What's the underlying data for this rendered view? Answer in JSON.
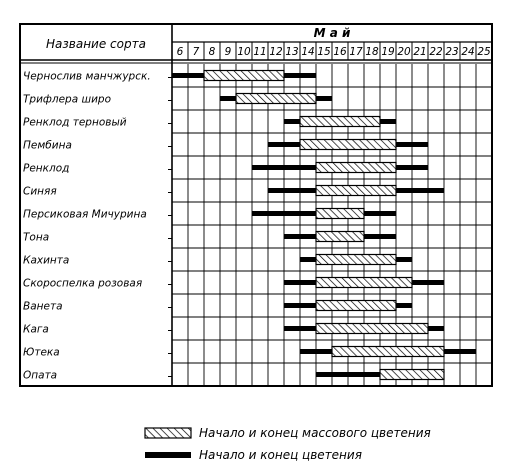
{
  "chart_data": {
    "type": "gantt",
    "corner_header": "Название сорта",
    "month": "М а й",
    "days": [
      "6",
      "7",
      "8",
      "9",
      "10",
      "11",
      "12",
      "13",
      "14",
      "15",
      "16",
      "17",
      "18",
      "19",
      "20",
      "21",
      "22",
      "23",
      "24",
      "25"
    ],
    "varieties": [
      {
        "name": "Чернослив манчжурск.",
        "bloom": [
          6,
          15
        ],
        "mass": [
          8,
          13
        ]
      },
      {
        "name": "Трифлера широ",
        "bloom": [
          9,
          16
        ],
        "mass": [
          10,
          15
        ]
      },
      {
        "name": "Ренклод терновый",
        "bloom": [
          13,
          20
        ],
        "mass": [
          14,
          19
        ]
      },
      {
        "name": "Пембина",
        "bloom": [
          12,
          22
        ],
        "mass": [
          14,
          20
        ]
      },
      {
        "name": "Ренклод",
        "bloom": [
          11,
          22
        ],
        "mass": [
          15,
          20
        ]
      },
      {
        "name": "Синяя",
        "bloom": [
          12,
          23
        ],
        "mass": [
          15,
          20
        ]
      },
      {
        "name": "Персиковая Мичурина",
        "bloom": [
          11,
          20
        ],
        "mass": [
          15,
          18
        ]
      },
      {
        "name": "Тона",
        "bloom": [
          13,
          20
        ],
        "mass": [
          15,
          18
        ]
      },
      {
        "name": "Кахинта",
        "bloom": [
          14,
          21
        ],
        "mass": [
          15,
          20
        ]
      },
      {
        "name": "Скороспелка розовая",
        "bloom": [
          13,
          23
        ],
        "mass": [
          15,
          21
        ]
      },
      {
        "name": "Ванета",
        "bloom": [
          13,
          21
        ],
        "mass": [
          15,
          20
        ]
      },
      {
        "name": "Кага",
        "bloom": [
          13,
          23
        ],
        "mass": [
          15,
          22
        ]
      },
      {
        "name": "Ютека",
        "bloom": [
          14,
          25
        ],
        "mass": [
          16,
          23
        ]
      },
      {
        "name": "Опата",
        "bloom": [
          15,
          23
        ],
        "mass": [
          19,
          23
        ]
      }
    ],
    "legend": [
      {
        "key": "mass",
        "label": "Начало и конец массового цветения"
      },
      {
        "key": "bloom",
        "label": "Начало и конец цветения"
      }
    ]
  }
}
